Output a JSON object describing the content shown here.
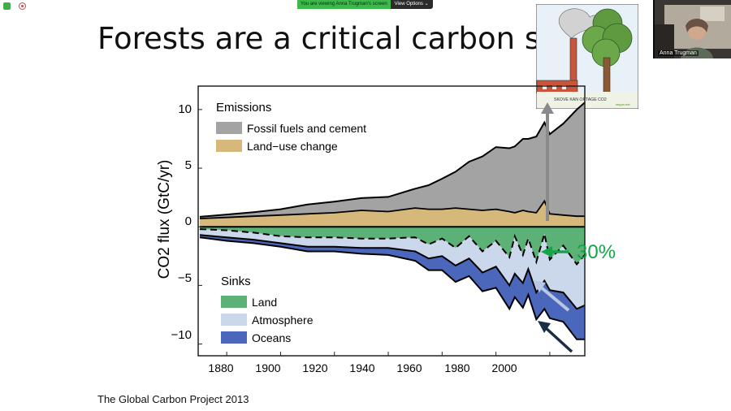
{
  "window": {
    "share_text": "You are viewing Anna Trugman's screen",
    "view_options_label": "View Options ⌄"
  },
  "slide": {
    "title": "Forests are a critical carbon sink",
    "source": "The Global Carbon Project 2013",
    "cartoon_caption": "SKOVE KAN OPTAGE CO2",
    "cartoon_credit": "seppo.net"
  },
  "participant": {
    "name": "Anna Trugman"
  },
  "callout": {
    "text": "30%"
  },
  "colors": {
    "fossil": "#a3a3a3",
    "landuse": "#d6b87a",
    "land": "#5cb176",
    "atmosphere": "#cbd7ea",
    "oceans": "#4a67bb",
    "callout_green": "#16a34a",
    "arrow_gray": "#8a8a8a",
    "arrow_light": "#b8c8e3",
    "arrow_dark": "#1c2c45"
  },
  "chart_data": {
    "type": "area",
    "xlabel": "",
    "ylabel": "CO2 flux (GtC/yr)",
    "xlim": [
      1870,
      2013
    ],
    "ylim": [
      -11,
      12
    ],
    "x_ticks": [
      "1880",
      "1900",
      "1920",
      "1940",
      "1960",
      "1980",
      "2000"
    ],
    "y_ticks": [
      "10",
      "5",
      "0",
      "−5",
      "−10"
    ],
    "legend_emissions": {
      "title": "Emissions",
      "items": [
        "Fossil fuels and cement",
        "Land−use change"
      ]
    },
    "legend_sinks": {
      "title": "Sinks",
      "items": [
        "Land",
        "Atmosphere",
        "Oceans"
      ]
    },
    "x": [
      1870,
      1880,
      1890,
      1900,
      1910,
      1920,
      1930,
      1940,
      1950,
      1955,
      1960,
      1965,
      1970,
      1975,
      1980,
      1985,
      1987,
      1990,
      1992,
      1995,
      1998,
      2000,
      2005,
      2010,
      2013
    ],
    "series": [
      {
        "name": "Land−use change",
        "values": [
          0.7,
          0.8,
          0.9,
          1.0,
          1.1,
          1.2,
          1.4,
          1.3,
          1.6,
          1.5,
          1.5,
          1.6,
          1.5,
          1.4,
          1.5,
          1.3,
          1.2,
          1.4,
          1.3,
          1.2,
          2.2,
          1.1,
          1.0,
          0.9,
          0.9
        ]
      },
      {
        "name": "Fossil fuels and cement",
        "values": [
          0.15,
          0.25,
          0.35,
          0.5,
          0.8,
          0.95,
          1.05,
          1.25,
          1.65,
          2.05,
          2.6,
          3.1,
          4.05,
          4.6,
          5.3,
          5.4,
          5.65,
          6.1,
          6.2,
          6.5,
          6.7,
          6.8,
          7.8,
          9.1,
          9.7
        ]
      },
      {
        "name": "Land",
        "values": [
          -0.2,
          -0.3,
          -0.5,
          -0.8,
          -0.9,
          -0.9,
          -1.0,
          -1.0,
          -0.9,
          -1.5,
          -1.0,
          -1.8,
          -0.8,
          -2.1,
          -1.2,
          -2.6,
          -0.8,
          -2.4,
          -1.0,
          -3.0,
          -0.6,
          -2.8,
          -1.6,
          -3.2,
          -2.4
        ]
      },
      {
        "name": "Atmosphere",
        "values": [
          -0.5,
          -0.6,
          -0.6,
          -0.6,
          -0.8,
          -0.8,
          -0.8,
          -0.8,
          -1.2,
          -1.2,
          -1.5,
          -1.5,
          -1.9,
          -1.8,
          -2.2,
          -2.4,
          -3.2,
          -2.4,
          -2.6,
          -2.6,
          -4.0,
          -2.6,
          -4.0,
          -3.8,
          -4.3
        ]
      },
      {
        "name": "Oceans",
        "values": [
          -0.2,
          -0.3,
          -0.3,
          -0.3,
          -0.4,
          -0.4,
          -0.5,
          -0.6,
          -0.8,
          -1.0,
          -1.2,
          -1.4,
          -1.5,
          -1.6,
          -1.8,
          -2.0,
          -2.0,
          -2.1,
          -2.2,
          -2.3,
          -2.4,
          -2.4,
          -2.5,
          -2.6,
          -2.9
        ]
      }
    ]
  }
}
